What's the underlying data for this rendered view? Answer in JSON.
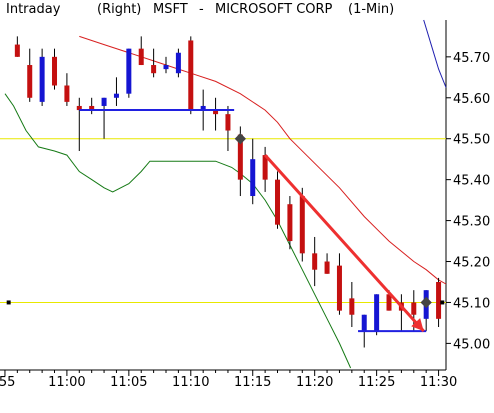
{
  "chart_data": {
    "type": "candlestick",
    "header": {
      "label": "Intraday",
      "axis_side": "(Right)",
      "symbol": "MSFT",
      "separator": "-",
      "company": "MICROSOFT CORP",
      "interval": "(1-Min)"
    },
    "y_axis": {
      "ticks": [
        "45.70",
        "45.60",
        "45.50",
        "45.40",
        "45.30",
        "45.20",
        "45.10",
        "45.00"
      ],
      "values": [
        45.7,
        45.6,
        45.5,
        45.4,
        45.3,
        45.2,
        45.1,
        45.0
      ],
      "range": [
        44.935,
        45.79
      ]
    },
    "x_axis": {
      "ticks": [
        ":55",
        "11:00",
        "11:05",
        "11:10",
        "11:15",
        "11:20",
        "11:25",
        "11:30"
      ],
      "minutes": [
        -5,
        0,
        5,
        10,
        15,
        20,
        25,
        30
      ],
      "range": [
        -5.4,
        30.6
      ]
    },
    "colors": {
      "up": "#1515d2",
      "down": "#c41010",
      "ma_red": "#d82020",
      "ma_green": "#167a16",
      "ma_blue": "#2020b0",
      "hline": "#e8e800",
      "trend": "#ee3030",
      "level": "#2020e0"
    },
    "candles": [
      {
        "t": -4,
        "o": 45.73,
        "h": 45.75,
        "l": 45.7,
        "c": 45.7
      },
      {
        "t": -3,
        "o": 45.68,
        "h": 45.72,
        "l": 45.59,
        "c": 45.6
      },
      {
        "t": -2,
        "o": 45.59,
        "h": 45.72,
        "l": 45.58,
        "c": 45.7
      },
      {
        "t": -1,
        "o": 45.7,
        "h": 45.72,
        "l": 45.62,
        "c": 45.63
      },
      {
        "t": 0,
        "o": 45.63,
        "h": 45.66,
        "l": 45.58,
        "c": 45.59
      },
      {
        "t": 1,
        "o": 45.58,
        "h": 45.6,
        "l": 45.47,
        "c": 45.57
      },
      {
        "t": 2,
        "o": 45.58,
        "h": 45.6,
        "l": 45.56,
        "c": 45.57
      },
      {
        "t": 3,
        "o": 45.58,
        "h": 45.6,
        "l": 45.5,
        "c": 45.6
      },
      {
        "t": 4,
        "o": 45.6,
        "h": 45.65,
        "l": 45.58,
        "c": 45.61
      },
      {
        "t": 5,
        "o": 45.61,
        "h": 45.72,
        "l": 45.6,
        "c": 45.72
      },
      {
        "t": 6,
        "o": 45.72,
        "h": 45.75,
        "l": 45.68,
        "c": 45.68
      },
      {
        "t": 7,
        "o": 45.68,
        "h": 45.72,
        "l": 45.65,
        "c": 45.66
      },
      {
        "t": 8,
        "o": 45.67,
        "h": 45.7,
        "l": 45.66,
        "c": 45.68
      },
      {
        "t": 9,
        "o": 45.66,
        "h": 45.72,
        "l": 45.65,
        "c": 45.71
      },
      {
        "t": 10,
        "o": 45.74,
        "h": 45.75,
        "l": 45.56,
        "c": 45.57
      },
      {
        "t": 11,
        "o": 45.57,
        "h": 45.62,
        "l": 45.52,
        "c": 45.58
      },
      {
        "t": 12,
        "o": 45.57,
        "h": 45.6,
        "l": 45.52,
        "c": 45.56
      },
      {
        "t": 13,
        "o": 45.56,
        "h": 45.58,
        "l": 45.47,
        "c": 45.52
      },
      {
        "t": 14,
        "o": 45.51,
        "h": 45.53,
        "l": 45.36,
        "c": 45.4
      },
      {
        "t": 15,
        "o": 45.36,
        "h": 45.5,
        "l": 45.34,
        "c": 45.45
      },
      {
        "t": 16,
        "o": 45.46,
        "h": 45.48,
        "l": 45.37,
        "c": 45.4
      },
      {
        "t": 17,
        "o": 45.4,
        "h": 45.42,
        "l": 45.28,
        "c": 45.29
      },
      {
        "t": 18,
        "o": 45.34,
        "h": 45.36,
        "l": 45.23,
        "c": 45.25
      },
      {
        "t": 19,
        "o": 45.36,
        "h": 45.38,
        "l": 45.2,
        "c": 45.22
      },
      {
        "t": 20,
        "o": 45.22,
        "h": 45.26,
        "l": 45.14,
        "c": 45.18
      },
      {
        "t": 21,
        "o": 45.2,
        "h": 45.22,
        "l": 45.17,
        "c": 45.17
      },
      {
        "t": 22,
        "o": 45.19,
        "h": 45.22,
        "l": 45.07,
        "c": 45.08
      },
      {
        "t": 23,
        "o": 45.11,
        "h": 45.15,
        "l": 45.04,
        "c": 45.07
      },
      {
        "t": 24,
        "o": 45.03,
        "h": 45.07,
        "l": 44.99,
        "c": 45.07
      },
      {
        "t": 25,
        "o": 45.03,
        "h": 45.12,
        "l": 45.02,
        "c": 45.12
      },
      {
        "t": 26,
        "o": 45.12,
        "h": 45.13,
        "l": 45.08,
        "c": 45.08
      },
      {
        "t": 27,
        "o": 45.1,
        "h": 45.12,
        "l": 45.03,
        "c": 45.08
      },
      {
        "t": 28,
        "o": 45.1,
        "h": 45.13,
        "l": 45.03,
        "c": 45.07
      },
      {
        "t": 29,
        "o": 45.06,
        "h": 45.13,
        "l": 45.03,
        "c": 45.13
      },
      {
        "t": 30,
        "o": 45.15,
        "h": 45.16,
        "l": 45.04,
        "c": 45.06
      }
    ],
    "ma_red": [
      [
        1,
        45.75
      ],
      [
        3,
        45.73
      ],
      [
        5,
        45.71
      ],
      [
        7,
        45.69
      ],
      [
        9,
        45.67
      ],
      [
        10,
        45.66
      ],
      [
        12,
        45.64
      ],
      [
        14,
        45.61
      ],
      [
        16,
        45.57
      ],
      [
        17,
        45.54
      ],
      [
        18,
        45.5
      ],
      [
        20,
        45.44
      ],
      [
        22,
        45.38
      ],
      [
        24,
        45.31
      ],
      [
        26,
        45.25
      ],
      [
        28,
        45.2
      ],
      [
        29,
        45.18
      ],
      [
        30,
        45.155
      ],
      [
        30.6,
        45.145
      ]
    ],
    "ma_green": [
      [
        -5,
        45.61
      ],
      [
        -4.3,
        45.58
      ],
      [
        -3.3,
        45.52
      ],
      [
        -2.3,
        45.48
      ],
      [
        -1,
        45.47
      ],
      [
        0,
        45.46
      ],
      [
        1,
        45.42
      ],
      [
        2,
        45.4
      ],
      [
        3,
        45.38
      ],
      [
        3.7,
        45.37
      ],
      [
        5,
        45.39
      ],
      [
        6,
        45.42
      ],
      [
        6.7,
        45.445
      ],
      [
        8,
        45.445
      ],
      [
        10,
        45.445
      ],
      [
        12,
        45.445
      ],
      [
        13.3,
        45.43
      ],
      [
        14,
        45.415
      ],
      [
        15,
        45.39
      ],
      [
        16,
        45.35
      ],
      [
        17,
        45.3
      ],
      [
        18,
        45.24
      ],
      [
        19,
        45.18
      ],
      [
        20,
        45.12
      ],
      [
        21,
        45.06
      ],
      [
        22,
        45.0
      ],
      [
        22.9,
        44.94
      ]
    ],
    "ma_blue": [
      [
        28.8,
        45.79
      ],
      [
        29.5,
        45.72
      ],
      [
        30.0,
        45.67
      ],
      [
        30.6,
        45.625
      ]
    ],
    "horizontal_lines": [
      45.5,
      45.1
    ],
    "level_lines": [
      {
        "x1": 1.0,
        "x2": 13.5,
        "y": 45.57
      },
      {
        "x1": 23.5,
        "x2": 29.0,
        "y": 45.03
      }
    ],
    "trend_arrow": {
      "x1": 16,
      "y1": 45.46,
      "x2": 28.8,
      "y2": 45.03
    },
    "markers": [
      {
        "t": 14,
        "y": 45.5
      },
      {
        "t": 29,
        "y": 45.1
      }
    ],
    "dot_markers": [
      {
        "t": -4.7,
        "y": 45.1
      },
      {
        "t": 30.3,
        "y": 45.1
      }
    ]
  }
}
